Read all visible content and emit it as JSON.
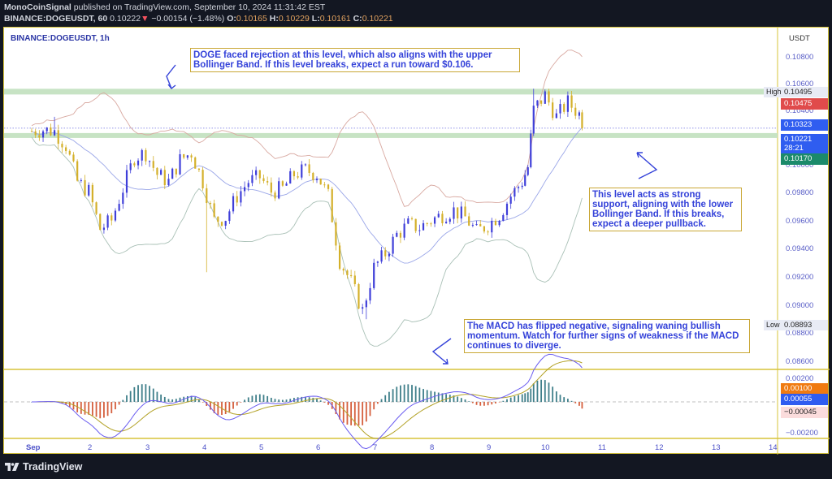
{
  "header": {
    "author": "MonoCoinSignal",
    "published_text": "published on TradingView.com, September 10, 2024 11:31:42 EST",
    "symbol_interval": "BINANCE:DOGEUSDT, 60",
    "last_price": "0.10222",
    "change_arrow": "▼",
    "change": "−0.00154 (−1.48%)",
    "ohlc": {
      "o_label": "O:",
      "o": "0.10165",
      "h_label": "H:",
      "h": "0.10229",
      "l_label": "L:",
      "l": "0.10161",
      "c_label": "C:",
      "c": "0.10221"
    }
  },
  "chart_panel": {
    "symbol_label": "BINANCE:DOGEUSDT, 1h",
    "currency": "USDT"
  },
  "price_axis": {
    "ticks": [
      "0.10800",
      "0.10600",
      "0.10400",
      "0.10000",
      "0.09800",
      "0.09600",
      "0.09400",
      "0.09200",
      "0.09000",
      "0.08800",
      "0.08600"
    ],
    "high_label": "High",
    "high_value": "0.10495",
    "low_label": "Low",
    "low_value": "0.08893",
    "tags": {
      "upper_bb": "0.10475",
      "mid_bb": "0.10323",
      "last": "0.10221",
      "countdown": "28:21",
      "lower_bb": "0.10170"
    }
  },
  "macd_axis": {
    "ticks": [
      "0.00200",
      "0.00000",
      "−0.00200"
    ],
    "signal_tag": "0.00100",
    "macd_tag": "0.00055",
    "hist_tag": "−0.00045"
  },
  "time_axis": {
    "labels": [
      "Sep",
      "2",
      "3",
      "4",
      "5",
      "6",
      "7",
      "8",
      "9",
      "10",
      "11",
      "12",
      "13",
      "14"
    ]
  },
  "annotations": {
    "resistance_note": "DOGE faced rejection at this level, which also aligns with the upper Bollinger Band. If this level breaks, expect a run toward $0.106.",
    "support_note": "This level acts as strong support, aligning with the lower Bollinger Band. If this breaks, expect a deeper pullback.",
    "macd_note": "The MACD has flipped negative, signaling waning bullish momentum. Watch for further signs of weakness if the MACD continues to diverge."
  },
  "footer": {
    "brand": "TradingView"
  },
  "colors": {
    "up_candle": "#3f3fd9",
    "down_candle": "#d4b02a",
    "upper_band": "#d8a8a0",
    "basis": "#9aa6e8",
    "lower_band": "#a9c0b6",
    "zone": "#c7e3c4",
    "macd_line": "#6a5cf0",
    "signal_line": "#b3a227",
    "hist_pos": "#3f7f8a",
    "hist_neg": "#d5603e",
    "annotation_text": "#3442d9",
    "annotation_border": "#c9a735",
    "tag_red": "#e04b4b",
    "tag_blue": "#2f5df0",
    "tag_green": "#1b8a6a",
    "tag_orange": "#f07a10"
  },
  "chart_data": {
    "type": "candlestick",
    "title": "BINANCE:DOGEUSDT, 1h",
    "xlabel": "",
    "ylabel": "USDT",
    "ylim": [
      0.0855,
      0.1092
    ],
    "x_range": [
      "Sep 1",
      "Sep 14"
    ],
    "overlays": [
      "Bollinger Bands",
      "Horizontal zones"
    ],
    "resistance_zone": 0.10475,
    "support_zone": 0.1017,
    "last_price": 0.10221,
    "high": 0.10495,
    "low": 0.08893,
    "bollinger": {
      "upper": 0.10475,
      "basis": 0.10323,
      "lower": 0.1017
    },
    "close_path": {
      "x_day": [
        1.0,
        1.2,
        1.4,
        1.6,
        1.8,
        2.0,
        2.2,
        2.4,
        2.6,
        2.8,
        3.0,
        3.2,
        3.4,
        3.6,
        3.8,
        4.0,
        4.2,
        4.4,
        4.6,
        4.8,
        5.0,
        5.2,
        5.4,
        5.6,
        5.8,
        6.0,
        6.2,
        6.4,
        6.6,
        6.8,
        7.0,
        7.2,
        7.4,
        7.6,
        7.8,
        8.0,
        8.2,
        8.4,
        8.6,
        8.8,
        9.0,
        9.2,
        9.4,
        9.6,
        9.7,
        9.8,
        10.0,
        10.2,
        10.4,
        10.6,
        10.7
      ],
      "close": [
        0.102,
        0.1021,
        0.102,
        0.101,
        0.0985,
        0.0978,
        0.0952,
        0.0958,
        0.098,
        0.1002,
        0.1005,
        0.099,
        0.0985,
        0.1,
        0.1005,
        0.0985,
        0.0958,
        0.096,
        0.0975,
        0.0985,
        0.0988,
        0.0978,
        0.098,
        0.099,
        0.0993,
        0.099,
        0.0975,
        0.093,
        0.0915,
        0.0895,
        0.0925,
        0.0935,
        0.0948,
        0.0955,
        0.0953,
        0.0958,
        0.0962,
        0.0965,
        0.096,
        0.095,
        0.0955,
        0.0962,
        0.0975,
        0.0985,
        0.0995,
        0.1035,
        0.1045,
        0.103,
        0.104,
        0.1032,
        0.1022
      ]
    },
    "macd": {
      "ylim": [
        -0.0026,
        0.0023
      ],
      "macd_last": 0.00055,
      "signal_last": 0.001,
      "hist_last": -0.00045
    }
  }
}
